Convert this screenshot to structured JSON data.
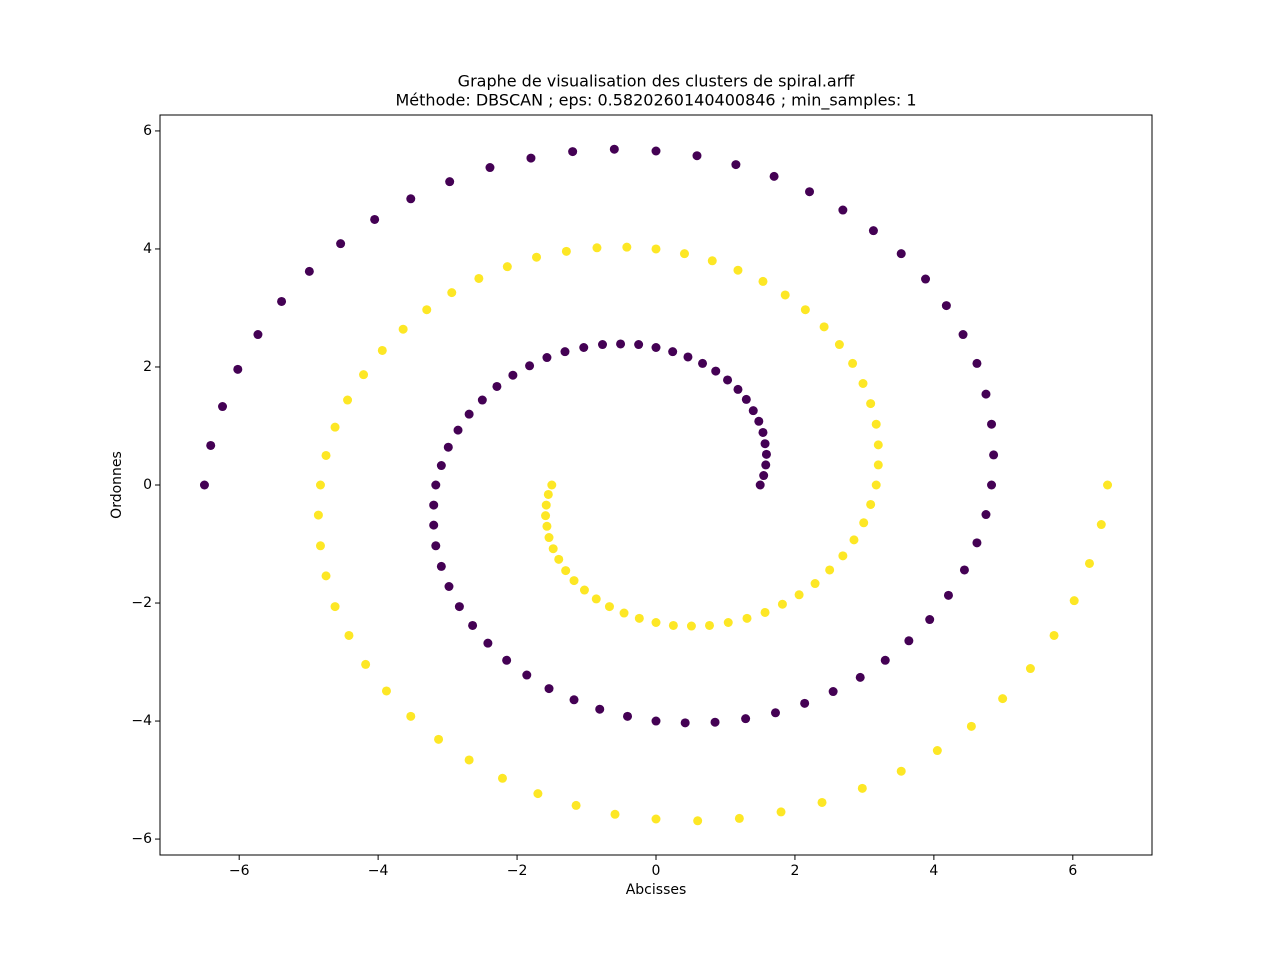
{
  "chart_data": {
    "type": "scatter",
    "title": "Graphe de visualisation des clusters de spiral.arff",
    "subtitle": "Méthode: DBSCAN ; eps: 0.5820260140400846 ; min_samples: 1",
    "x_label": "Abcisses",
    "y_label": "Ordonnes",
    "xlim": [
      -7.14,
      7.14
    ],
    "ylim": [
      -6.27,
      6.27
    ],
    "xticks": [
      {
        "value": -6,
        "label": "−6"
      },
      {
        "value": -4,
        "label": "−4"
      },
      {
        "value": -2,
        "label": "−2"
      },
      0,
      2,
      4,
      6
    ],
    "yticks": [
      {
        "value": -6,
        "label": "−6"
      },
      {
        "value": -4,
        "label": "−4"
      },
      {
        "value": -2,
        "label": "−2"
      },
      0,
      2,
      4,
      6
    ],
    "series": [
      {
        "color": "#440154",
        "x": [
          1.5,
          1.55,
          1.58,
          1.59,
          1.57,
          1.54,
          1.48,
          1.4,
          1.3,
          1.18,
          1.03,
          0.86,
          0.67,
          0.46,
          0.24,
          0,
          -0.25,
          -0.51,
          -0.77,
          -1.04,
          -1.31,
          -1.57,
          -1.82,
          -2.06,
          -2.29,
          -2.5,
          -2.69,
          -2.85,
          -2.99,
          -3.09,
          -3.17,
          -3.2,
          -3.2,
          -3.17,
          -3.09,
          -2.98,
          -2.83,
          -2.64,
          -2.42,
          -2.15,
          -1.86,
          -1.54,
          -1.18,
          -0.81,
          -0.41,
          0,
          0.42,
          0.85,
          1.29,
          1.72,
          2.14,
          2.55,
          2.94,
          3.3,
          3.64,
          3.94,
          4.21,
          4.44,
          4.62,
          4.75,
          4.83,
          4.86,
          4.83,
          4.75,
          4.62,
          4.42,
          4.18,
          3.88,
          3.53,
          3.13,
          2.69,
          2.21,
          1.7,
          1.15,
          0.59,
          0,
          -0.6,
          -1.2,
          -1.8,
          -2.39,
          -2.97,
          -3.53,
          -4.05,
          -4.54,
          -4.99,
          -5.39,
          -5.73,
          -6.02,
          -6.24,
          -6.41,
          -6.5
        ],
        "y": [
          0,
          0.16,
          0.34,
          0.52,
          0.7,
          0.89,
          1.08,
          1.26,
          1.45,
          1.62,
          1.78,
          1.93,
          2.06,
          2.17,
          2.26,
          2.33,
          2.38,
          2.39,
          2.38,
          2.33,
          2.26,
          2.16,
          2.02,
          1.86,
          1.67,
          1.44,
          1.2,
          0.93,
          0.64,
          0.33,
          0,
          -0.34,
          -0.68,
          -1.03,
          -1.38,
          -1.72,
          -2.06,
          -2.38,
          -2.68,
          -2.97,
          -3.22,
          -3.45,
          -3.64,
          -3.8,
          -3.92,
          -4,
          -4.03,
          -4.02,
          -3.96,
          -3.86,
          -3.7,
          -3.5,
          -3.26,
          -2.97,
          -2.64,
          -2.28,
          -1.87,
          -1.44,
          -0.98,
          -0.5,
          0,
          0.51,
          1.03,
          1.54,
          2.06,
          2.55,
          3.04,
          3.49,
          3.92,
          4.31,
          4.66,
          4.97,
          5.23,
          5.43,
          5.58,
          5.66,
          5.69,
          5.65,
          5.54,
          5.38,
          5.14,
          4.85,
          4.5,
          4.09,
          3.62,
          3.11,
          2.55,
          1.96,
          1.33,
          0.67,
          0
        ]
      },
      {
        "color": "#fde725",
        "x": [
          -1.5,
          -1.55,
          -1.58,
          -1.59,
          -1.57,
          -1.54,
          -1.48,
          -1.4,
          -1.3,
          -1.18,
          -1.03,
          -0.86,
          -0.67,
          -0.46,
          -0.24,
          0,
          0.25,
          0.51,
          0.77,
          1.04,
          1.31,
          1.57,
          1.82,
          2.06,
          2.29,
          2.5,
          2.69,
          2.85,
          2.99,
          3.09,
          3.17,
          3.2,
          3.2,
          3.17,
          3.09,
          2.98,
          2.83,
          2.64,
          2.42,
          2.15,
          1.86,
          1.54,
          1.18,
          0.81,
          0.41,
          0,
          -0.42,
          -0.85,
          -1.29,
          -1.72,
          -2.14,
          -2.55,
          -2.94,
          -3.3,
          -3.64,
          -3.94,
          -4.21,
          -4.44,
          -4.62,
          -4.75,
          -4.83,
          -4.86,
          -4.83,
          -4.75,
          -4.62,
          -4.42,
          -4.18,
          -3.88,
          -3.53,
          -3.13,
          -2.69,
          -2.21,
          -1.7,
          -1.15,
          -0.59,
          0,
          0.6,
          1.2,
          1.8,
          2.39,
          2.97,
          3.53,
          4.05,
          4.54,
          4.99,
          5.39,
          5.73,
          6.02,
          6.24,
          6.41,
          6.5
        ],
        "y": [
          0,
          -0.16,
          -0.34,
          -0.52,
          -0.7,
          -0.89,
          -1.08,
          -1.26,
          -1.45,
          -1.62,
          -1.78,
          -1.93,
          -2.06,
          -2.17,
          -2.26,
          -2.33,
          -2.38,
          -2.39,
          -2.38,
          -2.33,
          -2.26,
          -2.16,
          -2.02,
          -1.86,
          -1.67,
          -1.44,
          -1.2,
          -0.93,
          -0.64,
          -0.33,
          0,
          0.34,
          0.68,
          1.03,
          1.38,
          1.72,
          2.06,
          2.38,
          2.68,
          2.97,
          3.22,
          3.45,
          3.64,
          3.8,
          3.92,
          4,
          4.03,
          4.02,
          3.96,
          3.86,
          3.7,
          3.5,
          3.26,
          2.97,
          2.64,
          2.28,
          1.87,
          1.44,
          0.98,
          0.5,
          0,
          -0.51,
          -1.03,
          -1.54,
          -2.06,
          -2.55,
          -3.04,
          -3.49,
          -3.92,
          -4.31,
          -4.66,
          -4.97,
          -5.23,
          -5.43,
          -5.58,
          -5.66,
          -5.69,
          -5.65,
          -5.54,
          -5.38,
          -5.14,
          -4.85,
          -4.5,
          -4.09,
          -3.62,
          -3.11,
          -2.55,
          -1.96,
          -1.33,
          -0.67,
          0
        ]
      }
    ]
  }
}
